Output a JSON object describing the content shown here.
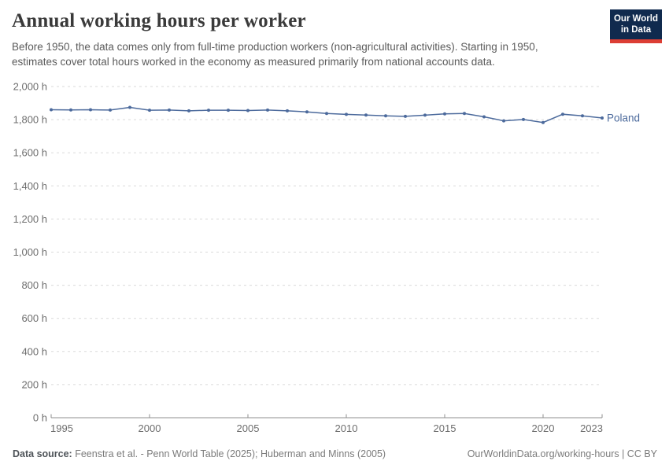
{
  "logo": {
    "line1": "Our World",
    "line2": "in Data"
  },
  "chart_data": {
    "type": "line",
    "title": "Annual working hours per worker",
    "subtitle": "Before 1950, the data comes only from full-time production workers (non-agricultural activities). Starting in 1950, estimates cover total hours worked in the economy as measured primarily from national accounts data.",
    "xlabel": "",
    "ylabel": "",
    "xlim": [
      1995,
      2023
    ],
    "ylim": [
      0,
      2000
    ],
    "grid": "dashed-horizontal",
    "legend": "end-of-line-label",
    "x": [
      1995,
      1996,
      1997,
      1998,
      1999,
      2000,
      2001,
      2002,
      2003,
      2004,
      2005,
      2006,
      2007,
      2008,
      2009,
      2010,
      2011,
      2012,
      2013,
      2014,
      2015,
      2016,
      2017,
      2018,
      2019,
      2020,
      2021,
      2022,
      2023
    ],
    "series": [
      {
        "name": "Poland",
        "color": "#4c6a9c",
        "values": [
          1860,
          1859,
          1860,
          1858,
          1874,
          1857,
          1858,
          1853,
          1857,
          1857,
          1855,
          1858,
          1853,
          1847,
          1837,
          1832,
          1828,
          1823,
          1820,
          1827,
          1835,
          1837,
          1817,
          1793,
          1801,
          1783,
          1833,
          1823,
          1810
        ]
      }
    ],
    "y_ticks": [
      {
        "value": 0,
        "label": "0 h"
      },
      {
        "value": 200,
        "label": "200 h"
      },
      {
        "value": 400,
        "label": "400 h"
      },
      {
        "value": 600,
        "label": "600 h"
      },
      {
        "value": 800,
        "label": "800 h"
      },
      {
        "value": 1000,
        "label": "1,000 h"
      },
      {
        "value": 1200,
        "label": "1,200 h"
      },
      {
        "value": 1400,
        "label": "1,400 h"
      },
      {
        "value": 1600,
        "label": "1,600 h"
      },
      {
        "value": 1800,
        "label": "1,800 h"
      },
      {
        "value": 2000,
        "label": "2,000 h"
      }
    ],
    "x_ticks": [
      {
        "value": 1995,
        "label": "1995"
      },
      {
        "value": 2000,
        "label": "2000"
      },
      {
        "value": 2005,
        "label": "2005"
      },
      {
        "value": 2010,
        "label": "2010"
      },
      {
        "value": 2015,
        "label": "2015"
      },
      {
        "value": 2020,
        "label": "2020"
      },
      {
        "value": 2023,
        "label": "2023"
      }
    ]
  },
  "footer": {
    "source_label": "Data source:",
    "source_text": " Feenstra et al. - Penn World Table (2025); Huberman and Minns (2005)",
    "link_text": "OurWorldinData.org/working-hours | CC BY"
  },
  "colors": {
    "line": "#4c6a9c",
    "grid": "#dadada",
    "axis": "#8f8f8f",
    "tick_label": "#6e6e6e"
  }
}
